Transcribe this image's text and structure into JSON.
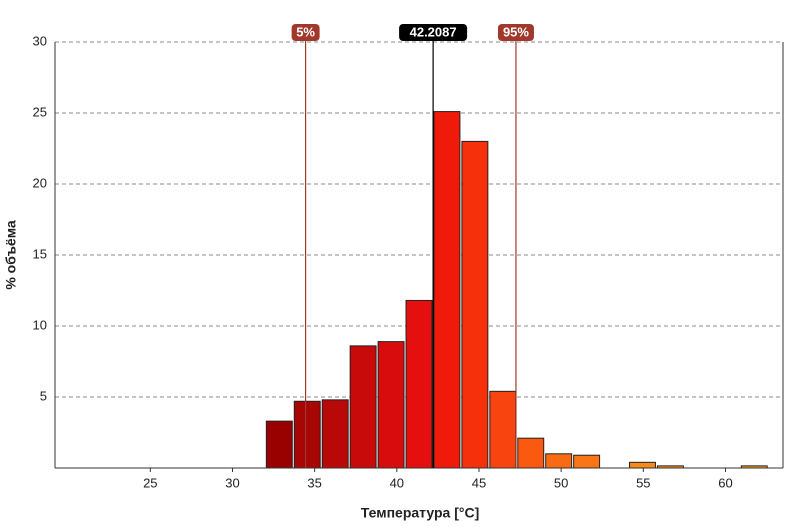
{
  "chart_data": {
    "type": "histogram",
    "xlabel": "Температура [°C]",
    "ylabel": "% объёма",
    "bins": [
      32.0,
      33.7,
      35.4,
      37.1,
      38.8,
      40.5,
      42.2,
      43.9,
      45.6,
      47.3,
      49.0,
      50.7,
      52.4,
      54.1,
      55.8,
      57.5,
      59.2,
      60.9,
      62.6
    ],
    "values": [
      3.3,
      4.7,
      4.8,
      8.6,
      8.9,
      11.8,
      25.1,
      23.0,
      5.4,
      2.1,
      1.0,
      0.9,
      0,
      0.4,
      0.15,
      0,
      0,
      0.15
    ],
    "colors": [
      "#990000",
      "#a80505",
      "#b80808",
      "#c80a0a",
      "#d80c0c",
      "#e60f0f",
      "#f01a0a",
      "#f5300a",
      "#f84510",
      "#f95a10",
      "#fa6a12",
      "#fa7515",
      "#fb8018",
      "#fb8a1a",
      "#fb921c",
      "#fb981e",
      "#fb9c1f",
      "#fca020"
    ],
    "xlim": [
      19.2,
      63.5
    ],
    "ylim": [
      0,
      30
    ],
    "xticks": [
      25,
      30,
      35,
      40,
      45,
      50,
      55,
      60
    ],
    "yticks": [
      5,
      10,
      15,
      20,
      25,
      30
    ],
    "grid": true,
    "markers": [
      {
        "label": "5%",
        "value": 34.45,
        "color": "#a0392c"
      },
      {
        "label": "42.2087",
        "value": 42.2087,
        "color": "#000000"
      },
      {
        "label": "95%",
        "value": 47.25,
        "color": "#a0392c"
      }
    ]
  }
}
